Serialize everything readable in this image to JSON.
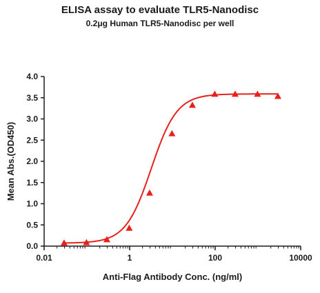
{
  "chart_data": {
    "type": "scatter",
    "title": "ELISA assay to evaluate TLR5-Nanodisc",
    "subtitle": "0.2μg Human TLR5-Nanodisc per well",
    "xlabel": "Anti-Flag Antibody Conc. (ng/ml)",
    "ylabel": "Mean Abs.(OD450)",
    "xscale": "log",
    "xlim": [
      0.01,
      10000
    ],
    "ylim": [
      0,
      4.0
    ],
    "x_ticks": [
      0.01,
      1,
      100,
      10000
    ],
    "x_tick_labels": [
      "0.01",
      "1",
      "100",
      "10000"
    ],
    "y_ticks": [
      0,
      0.5,
      1.0,
      1.5,
      2.0,
      2.5,
      3.0,
      3.5,
      4.0
    ],
    "y_tick_labels": [
      "0.0",
      "0.5",
      "1.0",
      "1.5",
      "2.0",
      "2.5",
      "3.0",
      "3.5",
      "4.0"
    ],
    "grid": false,
    "color": "#e8201c",
    "marker": "triangle",
    "series": [
      {
        "x": [
          0.0293,
          0.0977,
          0.293,
          0.977,
          2.93,
          9.77,
          29.3,
          97.7,
          293,
          977,
          2930
        ],
        "y": [
          0.07,
          0.08,
          0.15,
          0.42,
          1.25,
          2.65,
          3.32,
          3.58,
          3.58,
          3.58,
          3.53
        ]
      }
    ],
    "fit_curve": {
      "bottom": 0.07,
      "top": 3.59,
      "ec50": 3.2,
      "hill": 1.45
    }
  }
}
